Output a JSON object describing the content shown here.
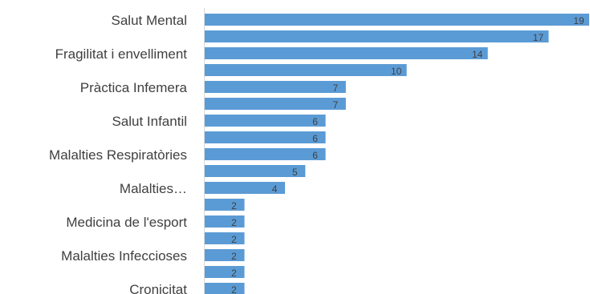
{
  "chart_data": {
    "type": "bar",
    "orientation": "horizontal",
    "title": "",
    "xlabel": "",
    "ylabel": "",
    "bar_color": "#5b9bd5",
    "grid": false,
    "legend": "none",
    "xlim": [
      0,
      19
    ],
    "bars": [
      {
        "label": "Salut Mental",
        "value": 19
      },
      {
        "label": "",
        "value": 17
      },
      {
        "label": "Fragilitat i envelliment",
        "value": 14
      },
      {
        "label": "",
        "value": 10
      },
      {
        "label": "Pràctica Infemera",
        "value": 7
      },
      {
        "label": "",
        "value": 7
      },
      {
        "label": "Salut Infantil",
        "value": 6
      },
      {
        "label": "",
        "value": 6
      },
      {
        "label": "Malalties Respiratòries",
        "value": 6
      },
      {
        "label": "",
        "value": 5
      },
      {
        "label": "Malalties…",
        "value": 4
      },
      {
        "label": "",
        "value": 2
      },
      {
        "label": "Medicina de l'esport",
        "value": 2
      },
      {
        "label": "",
        "value": 2
      },
      {
        "label": "Malalties Infeccioses",
        "value": 2
      },
      {
        "label": "",
        "value": 2
      },
      {
        "label": "Cronicitat",
        "value": 2
      }
    ]
  }
}
